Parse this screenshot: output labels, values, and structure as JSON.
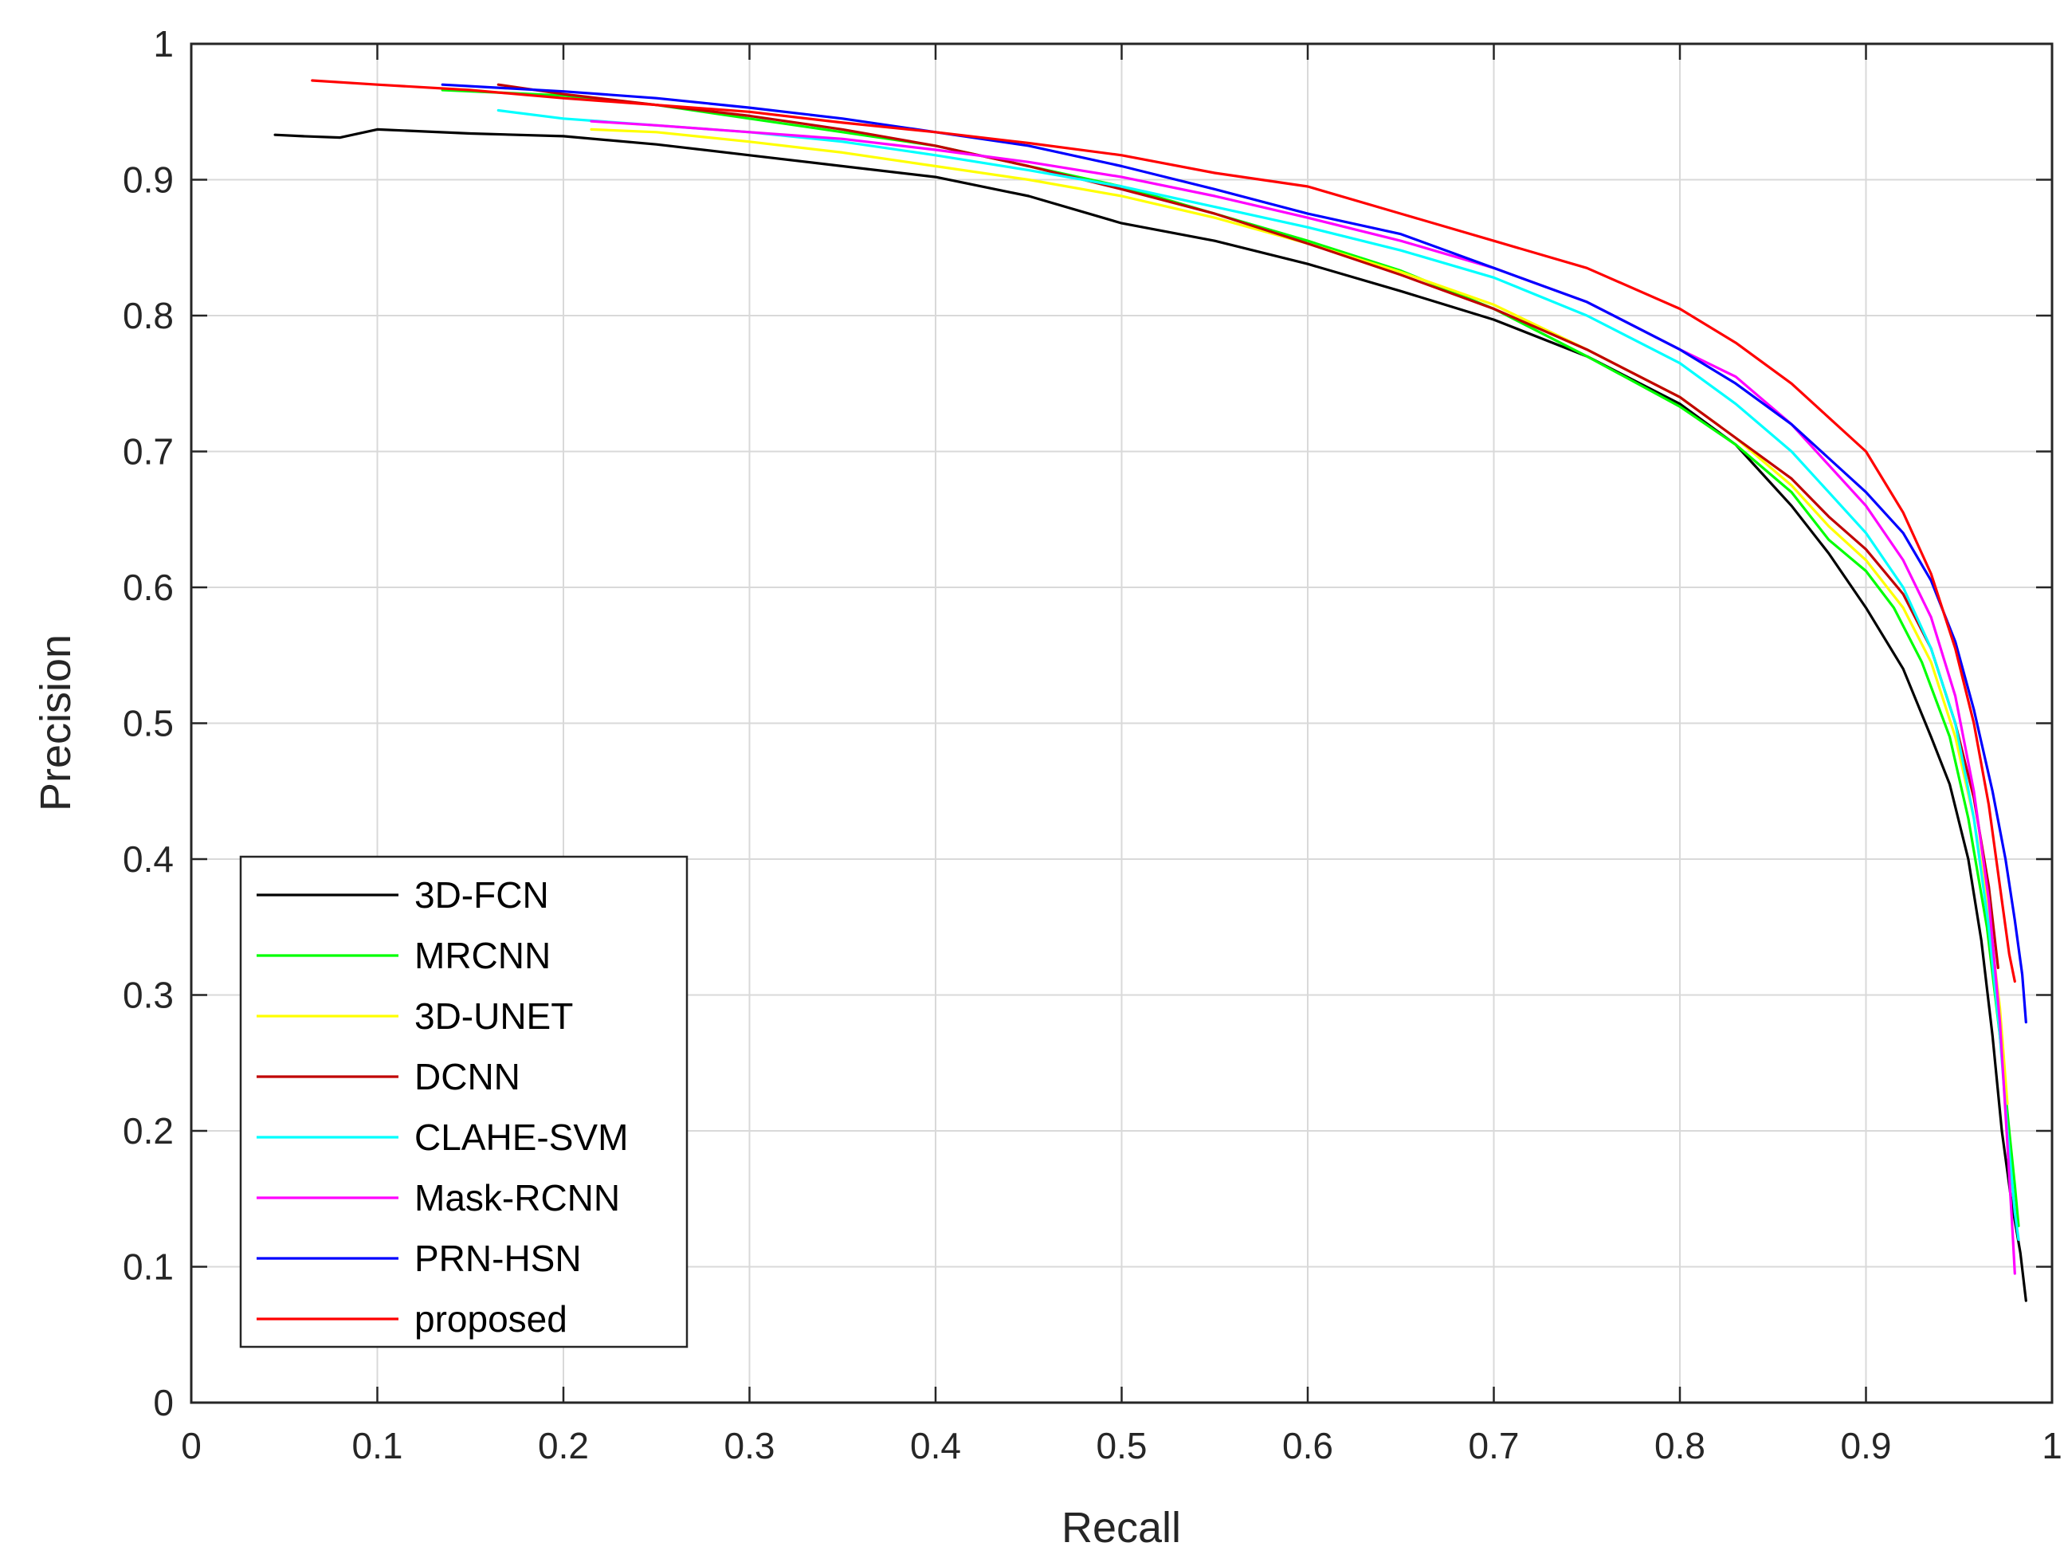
{
  "chart_data": {
    "type": "line",
    "title": "",
    "xlabel": "Recall",
    "ylabel": "Precision",
    "xlim": [
      0,
      1
    ],
    "ylim": [
      0,
      1
    ],
    "grid": true,
    "legend_position": "bottom-left",
    "x_ticks": [
      "0",
      "0.1",
      "0.2",
      "0.3",
      "0.4",
      "0.5",
      "0.6",
      "0.7",
      "0.8",
      "0.9",
      "1"
    ],
    "y_ticks": [
      "0",
      "0.1",
      "0.2",
      "0.3",
      "0.4",
      "0.5",
      "0.6",
      "0.7",
      "0.8",
      "0.9",
      "1"
    ],
    "series": [
      {
        "name": "3D-FCN",
        "color": "#000000",
        "points": [
          [
            0.045,
            0.933
          ],
          [
            0.06,
            0.932
          ],
          [
            0.08,
            0.931
          ],
          [
            0.1,
            0.937
          ],
          [
            0.15,
            0.934
          ],
          [
            0.2,
            0.932
          ],
          [
            0.25,
            0.926
          ],
          [
            0.3,
            0.918
          ],
          [
            0.35,
            0.91
          ],
          [
            0.4,
            0.902
          ],
          [
            0.45,
            0.888
          ],
          [
            0.5,
            0.868
          ],
          [
            0.55,
            0.855
          ],
          [
            0.6,
            0.838
          ],
          [
            0.65,
            0.818
          ],
          [
            0.7,
            0.797
          ],
          [
            0.75,
            0.77
          ],
          [
            0.8,
            0.735
          ],
          [
            0.83,
            0.705
          ],
          [
            0.86,
            0.66
          ],
          [
            0.88,
            0.625
          ],
          [
            0.9,
            0.585
          ],
          [
            0.92,
            0.54
          ],
          [
            0.935,
            0.49
          ],
          [
            0.945,
            0.455
          ],
          [
            0.955,
            0.4
          ],
          [
            0.962,
            0.34
          ],
          [
            0.968,
            0.27
          ],
          [
            0.973,
            0.2
          ],
          [
            0.978,
            0.15
          ],
          [
            0.983,
            0.11
          ],
          [
            0.986,
            0.075
          ]
        ]
      },
      {
        "name": "MRCNN",
        "color": "#00ff00",
        "points": [
          [
            0.135,
            0.966
          ],
          [
            0.2,
            0.962
          ],
          [
            0.25,
            0.955
          ],
          [
            0.3,
            0.945
          ],
          [
            0.35,
            0.935
          ],
          [
            0.4,
            0.925
          ],
          [
            0.45,
            0.91
          ],
          [
            0.5,
            0.895
          ],
          [
            0.55,
            0.875
          ],
          [
            0.6,
            0.855
          ],
          [
            0.65,
            0.833
          ],
          [
            0.7,
            0.805
          ],
          [
            0.75,
            0.77
          ],
          [
            0.8,
            0.733
          ],
          [
            0.83,
            0.705
          ],
          [
            0.86,
            0.67
          ],
          [
            0.88,
            0.635
          ],
          [
            0.9,
            0.612
          ],
          [
            0.915,
            0.585
          ],
          [
            0.93,
            0.545
          ],
          [
            0.945,
            0.49
          ],
          [
            0.955,
            0.43
          ],
          [
            0.965,
            0.35
          ],
          [
            0.972,
            0.27
          ],
          [
            0.977,
            0.2
          ],
          [
            0.98,
            0.16
          ],
          [
            0.982,
            0.13
          ]
        ]
      },
      {
        "name": "3D-UNET",
        "color": "#ffff00",
        "points": [
          [
            0.215,
            0.937
          ],
          [
            0.25,
            0.935
          ],
          [
            0.3,
            0.928
          ],
          [
            0.35,
            0.92
          ],
          [
            0.4,
            0.91
          ],
          [
            0.45,
            0.9
          ],
          [
            0.5,
            0.888
          ],
          [
            0.55,
            0.872
          ],
          [
            0.6,
            0.853
          ],
          [
            0.65,
            0.832
          ],
          [
            0.7,
            0.808
          ],
          [
            0.75,
            0.775
          ],
          [
            0.8,
            0.74
          ],
          [
            0.83,
            0.71
          ],
          [
            0.86,
            0.675
          ],
          [
            0.88,
            0.645
          ],
          [
            0.9,
            0.62
          ],
          [
            0.92,
            0.585
          ],
          [
            0.935,
            0.545
          ],
          [
            0.948,
            0.49
          ],
          [
            0.958,
            0.43
          ],
          [
            0.966,
            0.36
          ],
          [
            0.972,
            0.29
          ],
          [
            0.976,
            0.22
          ]
        ]
      },
      {
        "name": "DCNN",
        "color": "#c00000",
        "points": [
          [
            0.165,
            0.97
          ],
          [
            0.2,
            0.963
          ],
          [
            0.25,
            0.955
          ],
          [
            0.3,
            0.947
          ],
          [
            0.35,
            0.937
          ],
          [
            0.4,
            0.925
          ],
          [
            0.45,
            0.91
          ],
          [
            0.5,
            0.893
          ],
          [
            0.55,
            0.875
          ],
          [
            0.6,
            0.853
          ],
          [
            0.65,
            0.83
          ],
          [
            0.7,
            0.805
          ],
          [
            0.75,
            0.775
          ],
          [
            0.8,
            0.74
          ],
          [
            0.83,
            0.71
          ],
          [
            0.86,
            0.68
          ],
          [
            0.88,
            0.652
          ],
          [
            0.9,
            0.628
          ],
          [
            0.92,
            0.595
          ],
          [
            0.935,
            0.555
          ],
          [
            0.948,
            0.5
          ],
          [
            0.958,
            0.445
          ],
          [
            0.966,
            0.38
          ],
          [
            0.971,
            0.32
          ]
        ]
      },
      {
        "name": "CLAHE-SVM",
        "color": "#00ffff",
        "points": [
          [
            0.165,
            0.951
          ],
          [
            0.2,
            0.945
          ],
          [
            0.25,
            0.94
          ],
          [
            0.3,
            0.935
          ],
          [
            0.35,
            0.928
          ],
          [
            0.4,
            0.918
          ],
          [
            0.45,
            0.907
          ],
          [
            0.5,
            0.895
          ],
          [
            0.55,
            0.88
          ],
          [
            0.6,
            0.865
          ],
          [
            0.65,
            0.848
          ],
          [
            0.7,
            0.828
          ],
          [
            0.75,
            0.8
          ],
          [
            0.8,
            0.765
          ],
          [
            0.83,
            0.735
          ],
          [
            0.86,
            0.7
          ],
          [
            0.88,
            0.67
          ],
          [
            0.9,
            0.64
          ],
          [
            0.92,
            0.6
          ],
          [
            0.935,
            0.555
          ],
          [
            0.948,
            0.5
          ],
          [
            0.958,
            0.43
          ],
          [
            0.966,
            0.35
          ],
          [
            0.972,
            0.27
          ],
          [
            0.976,
            0.2
          ],
          [
            0.98,
            0.14
          ],
          [
            0.982,
            0.12
          ]
        ]
      },
      {
        "name": "Mask-RCNN",
        "color": "#ff00ff",
        "points": [
          [
            0.215,
            0.943
          ],
          [
            0.25,
            0.94
          ],
          [
            0.3,
            0.935
          ],
          [
            0.35,
            0.93
          ],
          [
            0.4,
            0.922
          ],
          [
            0.45,
            0.913
          ],
          [
            0.5,
            0.902
          ],
          [
            0.55,
            0.888
          ],
          [
            0.6,
            0.872
          ],
          [
            0.65,
            0.855
          ],
          [
            0.7,
            0.835
          ],
          [
            0.75,
            0.81
          ],
          [
            0.8,
            0.775
          ],
          [
            0.83,
            0.755
          ],
          [
            0.86,
            0.72
          ],
          [
            0.88,
            0.69
          ],
          [
            0.9,
            0.66
          ],
          [
            0.92,
            0.62
          ],
          [
            0.935,
            0.578
          ],
          [
            0.948,
            0.52
          ],
          [
            0.958,
            0.45
          ],
          [
            0.966,
            0.37
          ],
          [
            0.972,
            0.28
          ],
          [
            0.976,
            0.19
          ],
          [
            0.979,
            0.12
          ],
          [
            0.98,
            0.095
          ]
        ]
      },
      {
        "name": "PRN-HSN",
        "color": "#0000ff",
        "points": [
          [
            0.135,
            0.97
          ],
          [
            0.2,
            0.965
          ],
          [
            0.25,
            0.96
          ],
          [
            0.3,
            0.953
          ],
          [
            0.35,
            0.945
          ],
          [
            0.4,
            0.935
          ],
          [
            0.45,
            0.925
          ],
          [
            0.5,
            0.91
          ],
          [
            0.55,
            0.893
          ],
          [
            0.6,
            0.875
          ],
          [
            0.65,
            0.86
          ],
          [
            0.7,
            0.835
          ],
          [
            0.75,
            0.81
          ],
          [
            0.8,
            0.775
          ],
          [
            0.83,
            0.75
          ],
          [
            0.86,
            0.72
          ],
          [
            0.88,
            0.695
          ],
          [
            0.9,
            0.67
          ],
          [
            0.92,
            0.64
          ],
          [
            0.935,
            0.605
          ],
          [
            0.948,
            0.56
          ],
          [
            0.958,
            0.51
          ],
          [
            0.968,
            0.45
          ],
          [
            0.975,
            0.4
          ],
          [
            0.98,
            0.355
          ],
          [
            0.984,
            0.315
          ],
          [
            0.986,
            0.28
          ]
        ]
      },
      {
        "name": "proposed",
        "color": "#ff0000",
        "points": [
          [
            0.065,
            0.973
          ],
          [
            0.1,
            0.97
          ],
          [
            0.15,
            0.966
          ],
          [
            0.2,
            0.96
          ],
          [
            0.25,
            0.955
          ],
          [
            0.3,
            0.95
          ],
          [
            0.35,
            0.942
          ],
          [
            0.4,
            0.935
          ],
          [
            0.45,
            0.927
          ],
          [
            0.5,
            0.918
          ],
          [
            0.55,
            0.905
          ],
          [
            0.6,
            0.895
          ],
          [
            0.65,
            0.875
          ],
          [
            0.7,
            0.855
          ],
          [
            0.75,
            0.835
          ],
          [
            0.8,
            0.805
          ],
          [
            0.83,
            0.78
          ],
          [
            0.86,
            0.75
          ],
          [
            0.88,
            0.725
          ],
          [
            0.9,
            0.7
          ],
          [
            0.92,
            0.655
          ],
          [
            0.935,
            0.61
          ],
          [
            0.948,
            0.555
          ],
          [
            0.958,
            0.5
          ],
          [
            0.966,
            0.44
          ],
          [
            0.972,
            0.38
          ],
          [
            0.977,
            0.33
          ],
          [
            0.98,
            0.31
          ]
        ]
      }
    ]
  }
}
